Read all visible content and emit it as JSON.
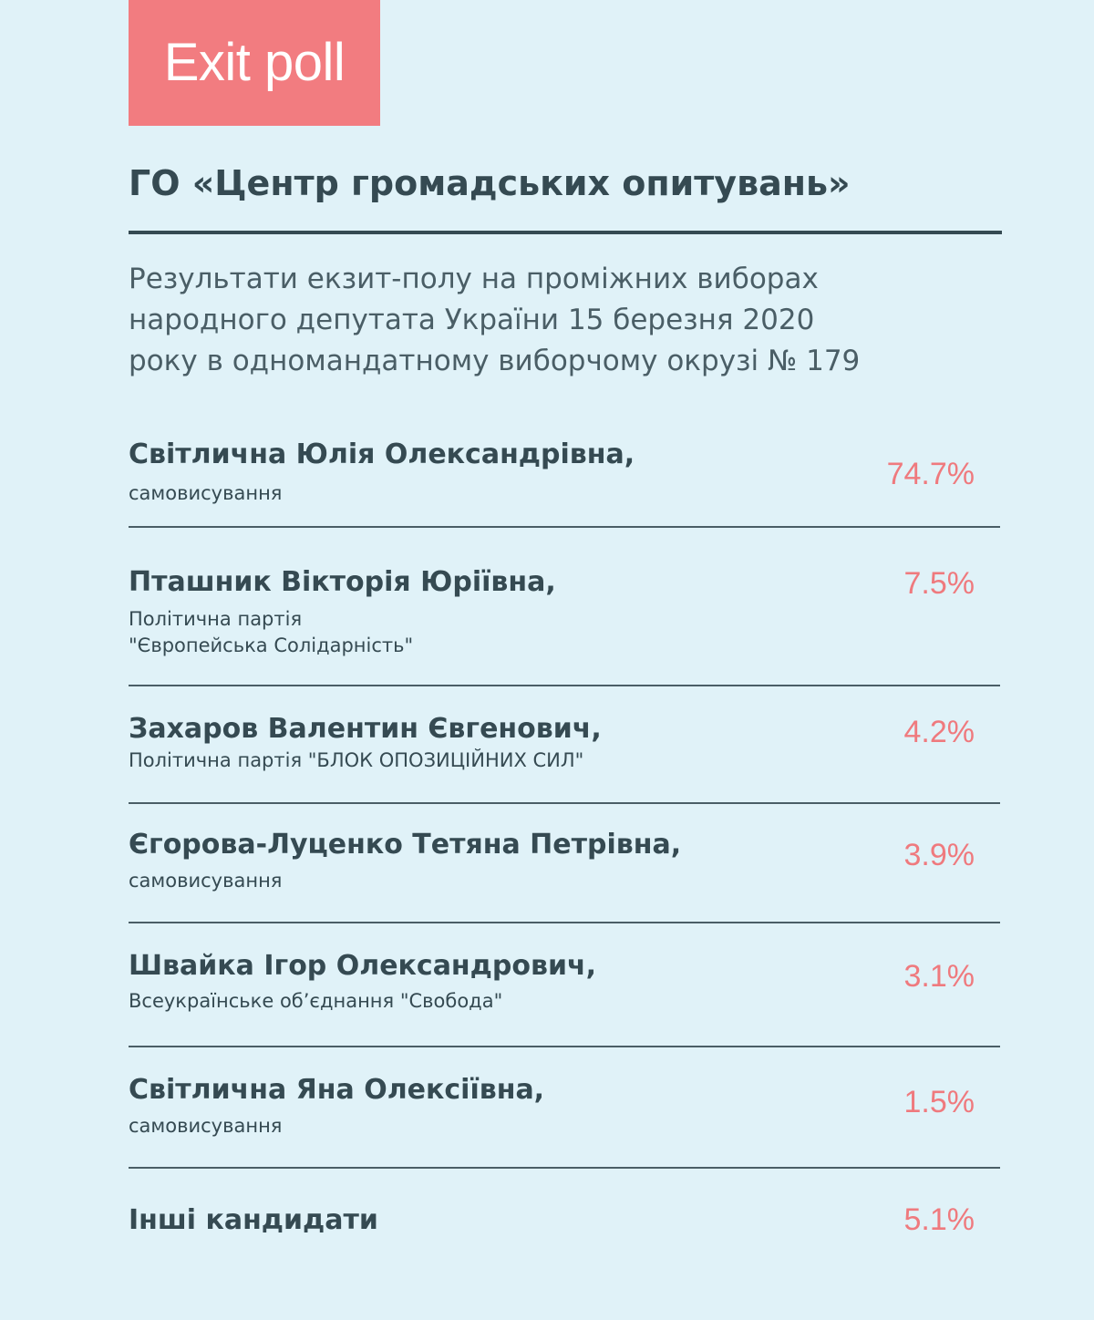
{
  "badge": {
    "label": "Exit poll"
  },
  "header": {
    "organization": "ГО «Центр громадських опитувань»",
    "subtitle_lines": [
      "Результати екзит-полу на проміжних виборах",
      "народного депутата України 15 березня 2020",
      "року в одномандатному виборчому окрузі № 179"
    ]
  },
  "candidates": [
    {
      "name": "Світлична Юлія Олександрівна,",
      "party_lines": [
        "самовисування"
      ],
      "percent": "74.7%"
    },
    {
      "name": "Пташник Вікторія Юріївна,",
      "party_lines": [
        "Політична партія",
        "\"Європейська Солідарність\""
      ],
      "percent": "7.5%"
    },
    {
      "name": "Захаров Валентин Євгенович,",
      "party_lines": [
        "Політична партія \"БЛОК ОПОЗИЦІЙНИХ СИЛ\""
      ],
      "percent": "4.2%"
    },
    {
      "name": "Єгорова-Луценко Тетяна Петрівна,",
      "party_lines": [
        "самовисування"
      ],
      "percent": "3.9%"
    },
    {
      "name": "Швайка Ігор Олександрович,",
      "party_lines": [
        "Всеукраїнське об’єднання \"Свобода\""
      ],
      "percent": "3.1%"
    },
    {
      "name": "Світлична Яна Олексіївна,",
      "party_lines": [
        "самовисування"
      ],
      "percent": "1.5%"
    },
    {
      "name": "Інші кандидати",
      "party_lines": [],
      "percent": "5.1%"
    }
  ],
  "colors": {
    "background": "#e0f2f8",
    "accent": "#f27c80",
    "text": "#354a52"
  }
}
